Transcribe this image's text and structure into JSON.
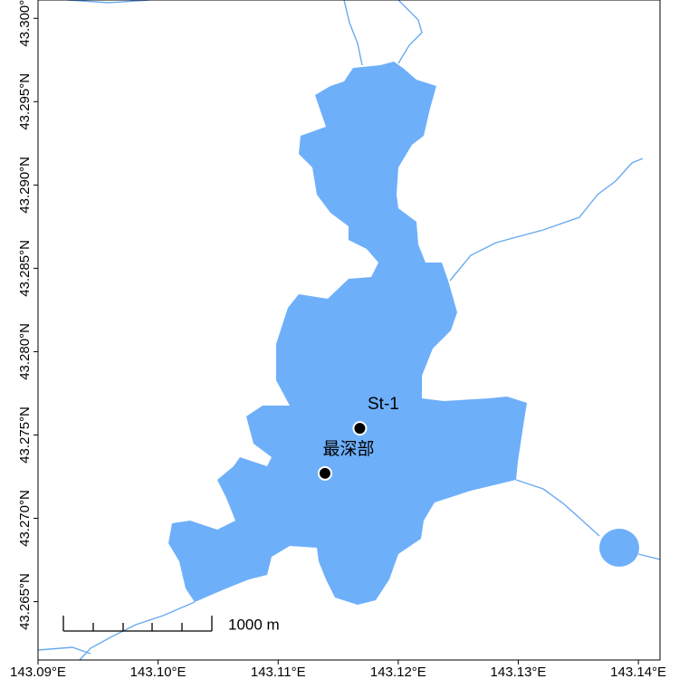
{
  "chart_data": {
    "type": "map",
    "xlim": [
      143.09,
      143.1418
    ],
    "ylim": [
      43.2615,
      43.3011
    ],
    "xticks": [
      {
        "value": 143.09,
        "label": "143.09°E"
      },
      {
        "value": 143.1,
        "label": "143.10°E"
      },
      {
        "value": 143.11,
        "label": "143.11°E"
      },
      {
        "value": 143.12,
        "label": "143.12°E"
      },
      {
        "value": 143.13,
        "label": "143.13°E"
      },
      {
        "value": 143.14,
        "label": "143.14°E"
      }
    ],
    "yticks": [
      {
        "value": 43.265,
        "label": "43.265°N"
      },
      {
        "value": 43.27,
        "label": "43.270°N"
      },
      {
        "value": 43.275,
        "label": "43.275°N"
      },
      {
        "value": 43.28,
        "label": "43.280°N"
      },
      {
        "value": 43.285,
        "label": "43.285°N"
      },
      {
        "value": 43.29,
        "label": "43.290°N"
      },
      {
        "value": 43.295,
        "label": "43.295°N"
      },
      {
        "value": 43.3,
        "label": "43.300°N"
      }
    ],
    "points": [
      {
        "name": "St-1",
        "lon": 143.1168,
        "lat": 43.2754
      },
      {
        "name": "最深部",
        "lon": 143.1139,
        "lat": 43.2727
      }
    ],
    "scale_bar_label": "1000 m"
  }
}
